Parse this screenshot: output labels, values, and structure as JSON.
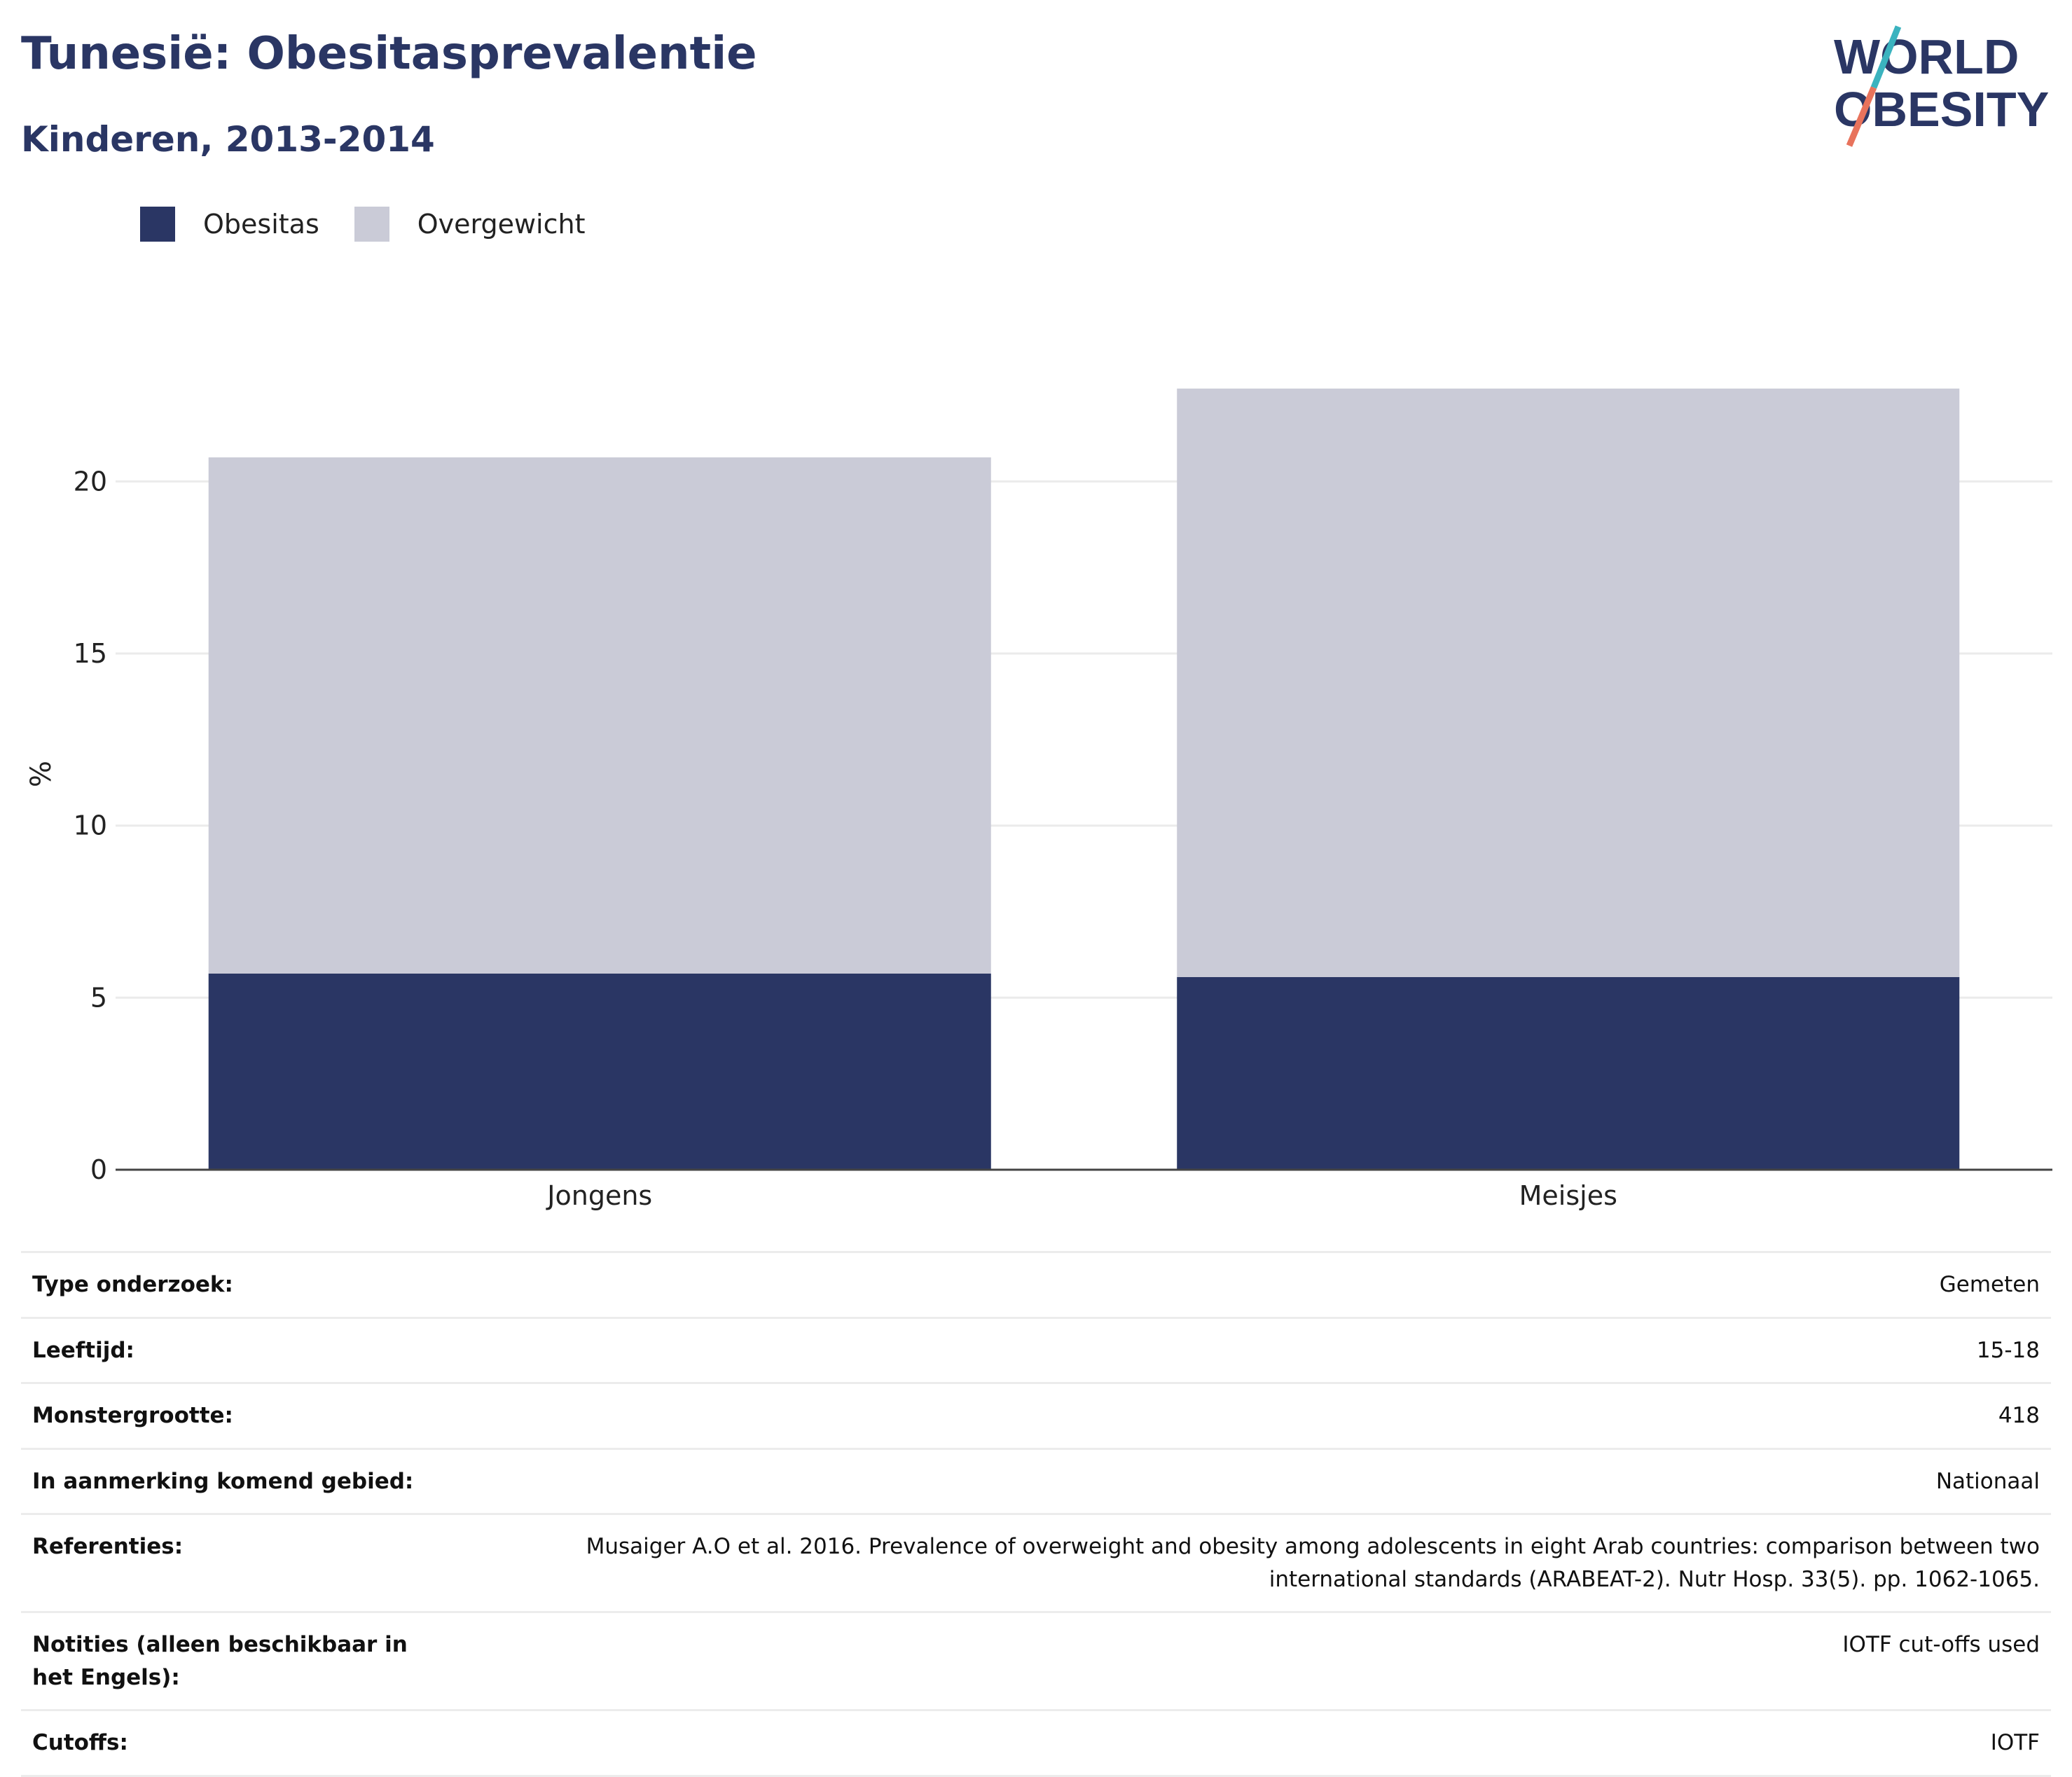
{
  "header": {
    "title": "Tunesië: Obesitasprevalentie",
    "subtitle": "Kinderen, 2013-2014"
  },
  "logo": {
    "line1": "WORLD",
    "line2": "OBESITY",
    "accent_colors": [
      "#3bb3bf",
      "#e8735c"
    ]
  },
  "legend": [
    {
      "label": "Obesitas",
      "color": "#2a3664"
    },
    {
      "label": "Overgewicht",
      "color": "#cacbd7"
    }
  ],
  "chart_data": {
    "type": "bar",
    "stacked": true,
    "categories": [
      "Jongens",
      "Meisjes"
    ],
    "series": [
      {
        "name": "Obesitas",
        "color": "#2a3664",
        "values": [
          5.7,
          5.6
        ]
      },
      {
        "name": "Overgewicht",
        "color": "#cacbd7",
        "values": [
          15.0,
          17.1
        ]
      }
    ],
    "ylabel": "%",
    "ylim": [
      0,
      23
    ],
    "yticks": [
      0,
      5,
      10,
      15,
      20
    ],
    "grid": true,
    "legend_position": "top-left"
  },
  "details": [
    {
      "label": "Type onderzoek:",
      "value": "Gemeten"
    },
    {
      "label": "Leeftijd:",
      "value": "15-18"
    },
    {
      "label": "Monstergrootte:",
      "value": "418"
    },
    {
      "label": "In aanmerking komend gebied:",
      "value": "Nationaal"
    },
    {
      "label": "Referenties:",
      "value": "Musaiger A.O et al. 2016. Prevalence of overweight and obesity among adolescents in eight Arab countries: comparison between two international standards (ARABEAT-2). Nutr Hosp. 33(5). pp. 1062-1065."
    },
    {
      "label": "Notities (alleen beschikbaar in het Engels):",
      "value": "IOTF cut-offs used"
    },
    {
      "label": "Cutoffs:",
      "value": "IOTF"
    }
  ]
}
